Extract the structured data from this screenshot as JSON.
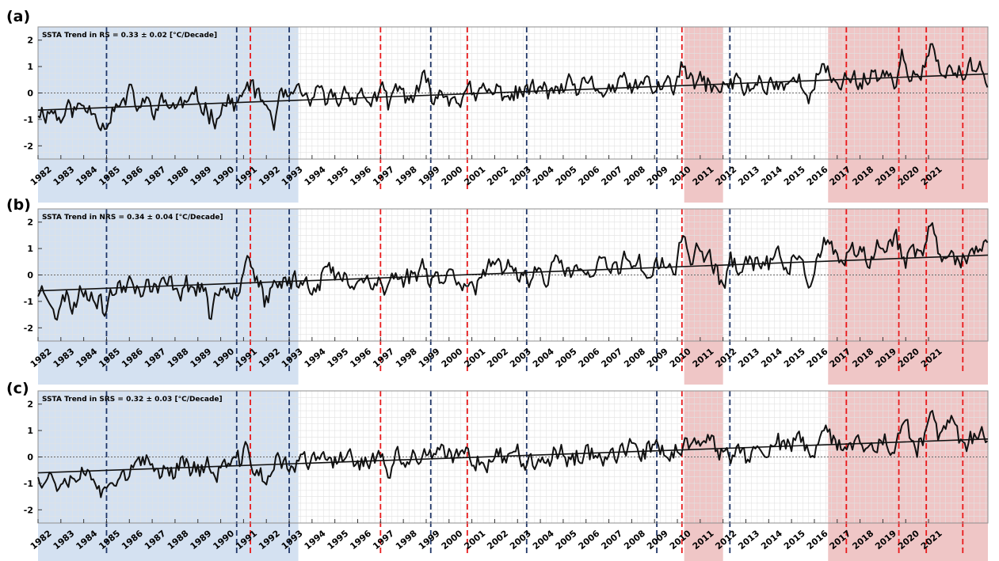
{
  "chart_data": [
    {
      "type": "line",
      "panel_label": "(a)",
      "region": "RS",
      "trend_text": "SSTA Trend in RS = 0.33 ± 0.02 [°C/Decade]",
      "trend": {
        "start": -0.65,
        "end": 0.72
      },
      "seed": 11,
      "peaks": [
        [
          1983.0,
          -0.35
        ],
        [
          1984.9,
          -0.55
        ],
        [
          1986.0,
          0.35
        ],
        [
          1989.7,
          -0.45
        ],
        [
          1991.3,
          0.75
        ],
        [
          1992.3,
          -0.7
        ],
        [
          1995.6,
          0.5
        ],
        [
          1997.4,
          -0.55
        ],
        [
          1997.6,
          0.45
        ],
        [
          1998.9,
          0.35
        ],
        [
          2001.1,
          -0.3
        ],
        [
          2010.3,
          0.65
        ],
        [
          2011.8,
          -0.35
        ],
        [
          2013.0,
          -0.25
        ],
        [
          2015.9,
          -0.5
        ],
        [
          2016.3,
          0.35
        ],
        [
          2018.7,
          0.35
        ],
        [
          2019.9,
          0.8
        ],
        [
          2021.1,
          1.0
        ],
        [
          2022.0,
          0.4
        ]
      ],
      "xlim": [
        1982,
        2023.6
      ],
      "ylim": [
        -2.5,
        2.5
      ],
      "yticks": [
        -2,
        -1,
        0,
        1,
        2
      ],
      "xticks": [
        1982,
        1983,
        1984,
        1985,
        1986,
        1987,
        1988,
        1989,
        1990,
        1991,
        1992,
        1993,
        1994,
        1995,
        1996,
        1997,
        1998,
        1999,
        2000,
        2001,
        2002,
        2003,
        2004,
        2005,
        2006,
        2007,
        2008,
        2009,
        2010,
        2011,
        2012,
        2013,
        2014,
        2015,
        2016,
        2017,
        2018,
        2019,
        2020,
        2021
      ],
      "xtick_labels": [
        "1982",
        "1983",
        "1984",
        "1985",
        "1986",
        "1987",
        "1988",
        "1989",
        "1990",
        "1991",
        "1992",
        "1993",
        "1994",
        "1995",
        "1996",
        "1997",
        "1998",
        "1999",
        "2000",
        "2001",
        "2002",
        "2003",
        "2004",
        "2005",
        "2006",
        "2007",
        "2008",
        "2009",
        "2010",
        "2011",
        "2012",
        "2013",
        "2014",
        "2015",
        "2016",
        "2017",
        "2018",
        "2019",
        "2020",
        "2021"
      ]
    },
    {
      "type": "line",
      "panel_label": "(b)",
      "region": "NRS",
      "trend_text": "SSTA Trend in NRS = 0.34 ± 0.04 [°C/Decade]",
      "trend": {
        "start": -0.6,
        "end": 0.75
      },
      "seed": 23,
      "peaks": [
        [
          1982.9,
          -0.9
        ],
        [
          1983.5,
          -0.6
        ],
        [
          1984.9,
          -0.85
        ],
        [
          1986.1,
          0.6
        ],
        [
          1989.6,
          -1.2
        ],
        [
          1991.2,
          1.4
        ],
        [
          1992.0,
          -0.8
        ],
        [
          1992.4,
          -0.5
        ],
        [
          1994.6,
          0.5
        ],
        [
          1997.2,
          -0.5
        ],
        [
          1998.9,
          0.45
        ],
        [
          2001.1,
          -0.55
        ],
        [
          2006.1,
          -0.4
        ],
        [
          2007.8,
          0.7
        ],
        [
          2010.3,
          1.2
        ],
        [
          2010.9,
          0.8
        ],
        [
          2012.0,
          -0.8
        ],
        [
          2015.7,
          -0.6
        ],
        [
          2016.5,
          0.55
        ],
        [
          2018.9,
          0.6
        ],
        [
          2019.5,
          0.8
        ],
        [
          2021.1,
          1.3
        ],
        [
          2021.9,
          0.5
        ]
      ],
      "xlim": [
        1982,
        2023.6
      ],
      "ylim": [
        -2.5,
        2.5
      ],
      "yticks": [
        -2,
        -1,
        0,
        1,
        2
      ],
      "xticks": [
        1982,
        1983,
        1984,
        1985,
        1986,
        1987,
        1988,
        1989,
        1990,
        1991,
        1992,
        1993,
        1994,
        1995,
        1996,
        1997,
        1998,
        1999,
        2000,
        2001,
        2002,
        2003,
        2004,
        2005,
        2006,
        2007,
        2008,
        2009,
        2010,
        2011,
        2012,
        2013,
        2014,
        2015,
        2016,
        2017,
        2018,
        2019,
        2020,
        2021
      ],
      "xtick_labels": [
        "1982",
        "1983",
        "1984",
        "1985",
        "1986",
        "1987",
        "1988",
        "1989",
        "1990",
        "1991",
        "1992",
        "1993",
        "1994",
        "1995",
        "1996",
        "1997",
        "1998",
        "1999",
        "2000",
        "2001",
        "2002",
        "2003",
        "2004",
        "2005",
        "2006",
        "2007",
        "2008",
        "2009",
        "2010",
        "2011",
        "2012",
        "2013",
        "2014",
        "2015",
        "2016",
        "2017",
        "2018",
        "2019",
        "2020",
        "2021"
      ]
    },
    {
      "type": "line",
      "panel_label": "(c)",
      "region": "SRS",
      "trend_text": "SSTA Trend in SRS = 0.32 ± 0.03 [°C/Decade]",
      "trend": {
        "start": -0.6,
        "end": 0.68
      },
      "seed": 37,
      "peaks": [
        [
          1982.8,
          -0.35
        ],
        [
          1984.9,
          -0.9
        ],
        [
          1988.4,
          0.4
        ],
        [
          1989.7,
          -0.35
        ],
        [
          1991.1,
          0.45
        ],
        [
          1992.0,
          -0.85
        ],
        [
          1995.6,
          0.7
        ],
        [
          1997.4,
          -0.5
        ],
        [
          1998.9,
          0.3
        ],
        [
          2010.3,
          0.35
        ],
        [
          2011.8,
          -0.3
        ],
        [
          2013.0,
          -0.55
        ],
        [
          2015.9,
          -0.55
        ],
        [
          2016.3,
          0.3
        ],
        [
          2018.5,
          0.35
        ],
        [
          2019.9,
          0.5
        ],
        [
          2021.1,
          0.8
        ],
        [
          2021.9,
          0.5
        ]
      ],
      "xlim": [
        1982,
        2023.6
      ],
      "ylim": [
        -2.5,
        2.5
      ],
      "yticks": [
        -2,
        -1,
        0,
        1,
        2
      ],
      "xticks": [
        1982,
        1983,
        1984,
        1985,
        1986,
        1987,
        1988,
        1989,
        1990,
        1991,
        1992,
        1993,
        1994,
        1995,
        1996,
        1997,
        1998,
        1999,
        2000,
        2001,
        2002,
        2003,
        2004,
        2005,
        2006,
        2007,
        2008,
        2009,
        2010,
        2011,
        2012,
        2013,
        2014,
        2015,
        2016,
        2017,
        2018,
        2019,
        2020,
        2021
      ],
      "xtick_labels": [
        "1982",
        "1983",
        "1984",
        "1985",
        "1986",
        "1987",
        "1988",
        "1989",
        "1990",
        "1991",
        "1992",
        "1993",
        "1994",
        "1995",
        "1996",
        "1997",
        "1998",
        "1999",
        "2000",
        "2001",
        "2002",
        "2003",
        "2004",
        "2005",
        "2006",
        "2007",
        "2008",
        "2009",
        "2010",
        "2011",
        "2012",
        "2013",
        "2014",
        "2015",
        "2016",
        "2017",
        "2018",
        "2019",
        "2020",
        "2021"
      ]
    }
  ],
  "shaded_periods": [
    {
      "kind": "cool",
      "start": 1982,
      "end": 1993.4,
      "color": "#d4e1f1"
    },
    {
      "kind": "warm",
      "start": 2010.3,
      "end": 2012.0,
      "color": "#efc6c6"
    },
    {
      "kind": "warm",
      "start": 2016.6,
      "end": 2023.6,
      "color": "#efc6c6"
    }
  ],
  "event_lines": [
    {
      "kind": "cool",
      "x": 1985.0,
      "color": "#1f3566"
    },
    {
      "kind": "cool",
      "x": 1990.7,
      "color": "#1f3566"
    },
    {
      "kind": "cool",
      "x": 1993.0,
      "color": "#1f3566"
    },
    {
      "kind": "cool",
      "x": 1999.2,
      "color": "#1f3566"
    },
    {
      "kind": "cool",
      "x": 2003.4,
      "color": "#1f3566"
    },
    {
      "kind": "cool",
      "x": 2009.1,
      "color": "#1f3566"
    },
    {
      "kind": "cool",
      "x": 2012.3,
      "color": "#1f3566"
    },
    {
      "kind": "warm",
      "x": 1991.3,
      "color": "#e8191b"
    },
    {
      "kind": "warm",
      "x": 1997.0,
      "color": "#e8191b"
    },
    {
      "kind": "warm",
      "x": 2000.8,
      "color": "#e8191b"
    },
    {
      "kind": "warm",
      "x": 2010.2,
      "color": "#e8191b"
    },
    {
      "kind": "warm",
      "x": 2017.4,
      "color": "#e8191b"
    },
    {
      "kind": "warm",
      "x": 2019.7,
      "color": "#e8191b"
    },
    {
      "kind": "warm",
      "x": 2020.9,
      "color": "#e8191b"
    },
    {
      "kind": "warm",
      "x": 2022.5,
      "color": "#e8191b"
    }
  ],
  "colors": {
    "series": "#111111",
    "trend": "#111111",
    "grid": "#e2e2e2",
    "axis": "#8f8f8f",
    "zero_line": "#666666"
  }
}
